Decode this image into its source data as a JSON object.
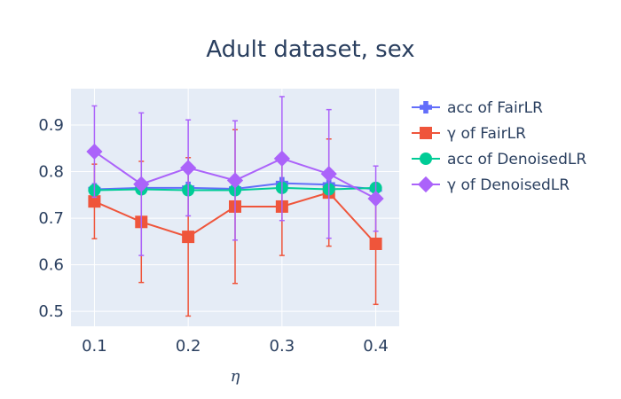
{
  "chart_data": {
    "type": "line",
    "title": "Adult dataset, sex",
    "xlabel": "η",
    "ylabel": "",
    "x": [
      0.1,
      0.15,
      0.2,
      0.25,
      0.3,
      0.35,
      0.4
    ],
    "xticks": [
      "0.1",
      "0.2",
      "0.3",
      "0.4"
    ],
    "xtick_values": [
      0.1,
      0.2,
      0.3,
      0.4
    ],
    "yticks": [
      "0.5",
      "0.6",
      "0.7",
      "0.8",
      "0.9"
    ],
    "ytick_values": [
      0.5,
      0.6,
      0.7,
      0.8,
      0.9
    ],
    "xlim": [
      0.075,
      0.425
    ],
    "ylim": [
      0.468,
      0.978
    ],
    "grid": true,
    "legend_position": "right",
    "series": [
      {
        "name": "acc of FairLR",
        "color": "#636efa",
        "marker": "cross",
        "values": [
          0.762,
          0.765,
          0.765,
          0.763,
          0.775,
          0.772,
          0.762
        ],
        "error": [
          0.004,
          0.004,
          0.004,
          0.004,
          0.004,
          0.004,
          0.004
        ]
      },
      {
        "name": "γ of FairLR",
        "color": "#ef553b",
        "marker": "square",
        "values": [
          0.736,
          0.692,
          0.66,
          0.725,
          0.725,
          0.755,
          0.645
        ],
        "error": [
          0.08,
          0.13,
          0.17,
          0.165,
          0.105,
          0.115,
          0.13
        ]
      },
      {
        "name": "acc of DenoisedLR",
        "color": "#00cc96",
        "marker": "circle",
        "values": [
          0.76,
          0.762,
          0.76,
          0.76,
          0.765,
          0.762,
          0.765
        ],
        "error": [
          0.004,
          0.004,
          0.004,
          0.004,
          0.004,
          0.004,
          0.004
        ]
      },
      {
        "name": "γ of DenoisedLR",
        "color": "#ab63fa",
        "marker": "diamond",
        "values": [
          0.843,
          0.773,
          0.808,
          0.781,
          0.828,
          0.795,
          0.742
        ],
        "error": [
          0.098,
          0.153,
          0.103,
          0.128,
          0.133,
          0.138,
          0.07
        ]
      }
    ]
  }
}
